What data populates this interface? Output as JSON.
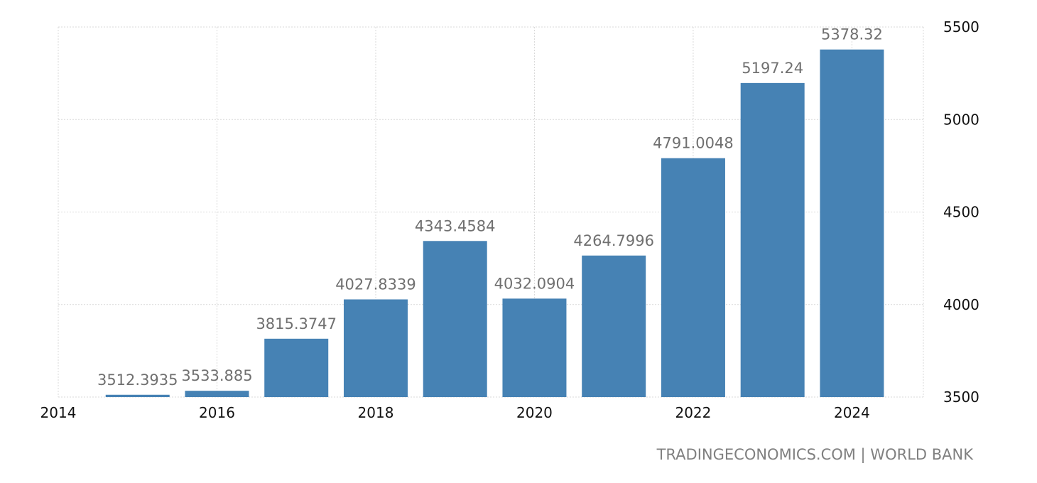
{
  "chart_data": {
    "type": "bar",
    "x": [
      2015,
      2016,
      2017,
      2018,
      2019,
      2020,
      2021,
      2022,
      2023,
      2024
    ],
    "values": [
      3512.3935,
      3533.885,
      3815.3747,
      4027.8339,
      4343.4584,
      4032.0904,
      4264.7996,
      4791.0048,
      5197.24,
      5378.32
    ],
    "value_labels": [
      "3512.3935",
      "3533.885",
      "3815.3747",
      "4027.8339",
      "4343.4584",
      "4032.0904",
      "4264.7996",
      "4791.0048",
      "5197.24",
      "5378.32"
    ],
    "title": "",
    "xlabel": "",
    "ylabel": "",
    "xlim": [
      2014,
      2024.9
    ],
    "ylim": [
      3500,
      5500
    ],
    "x_ticks": [
      2014,
      2016,
      2018,
      2020,
      2022,
      2024
    ],
    "x_tick_labels": [
      "2014",
      "2016",
      "2018",
      "2020",
      "2022",
      "2024"
    ],
    "y_ticks": [
      3500,
      4000,
      4500,
      5000,
      5500
    ],
    "y_tick_labels": [
      "3500",
      "4000",
      "4500",
      "5000",
      "5500"
    ],
    "y_axis_side": "right",
    "grid": true,
    "bar_color": "#4682b4",
    "label_color": "#707070",
    "grid_color": "#d9d9d9"
  },
  "footer": {
    "source_text": "TRADINGECONOMICS.COM | WORLD BANK"
  }
}
